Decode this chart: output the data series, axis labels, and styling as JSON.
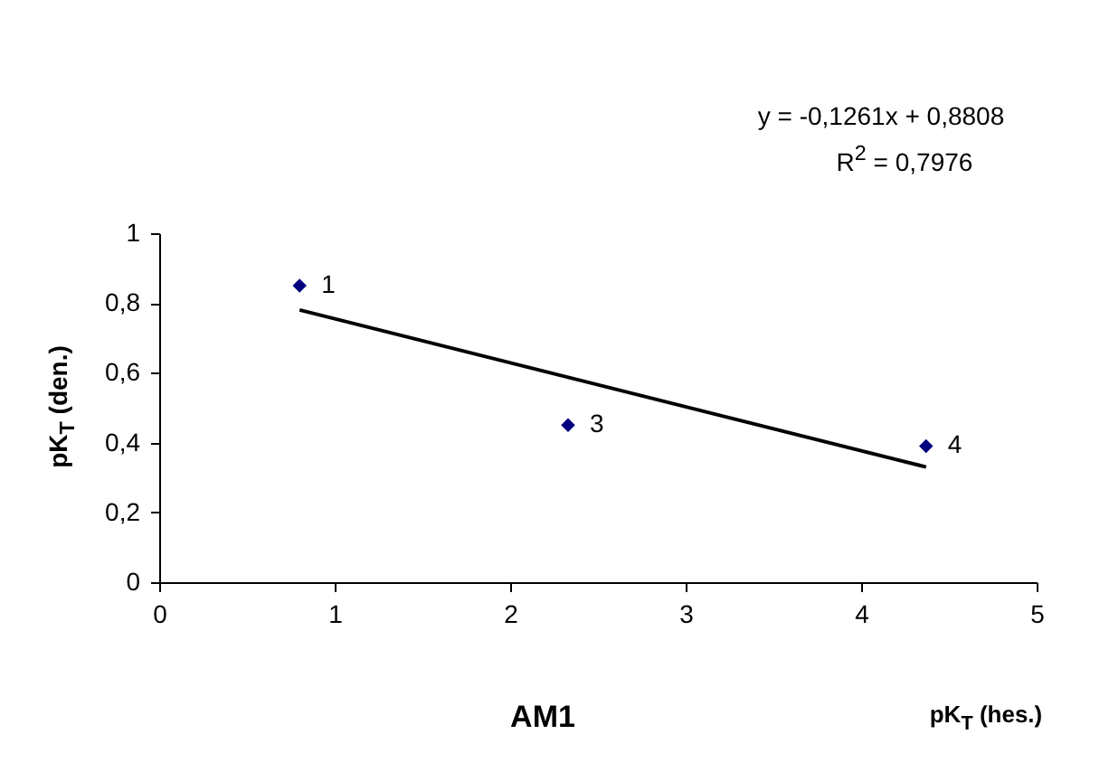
{
  "chart_data": {
    "type": "scatter",
    "xlabel": "pK$_{T}$ (hes.)",
    "ylabel": "pK$_{T}$ (den.)",
    "xlim": [
      0,
      5
    ],
    "xticks": [
      0,
      1,
      2,
      3,
      4,
      5
    ],
    "ylim": [
      0,
      1
    ],
    "yticks": [
      0,
      {
        "value": 0.2,
        "label": "0,2"
      },
      {
        "value": 0.4,
        "label": "0,4"
      },
      {
        "value": 0.6,
        "label": "0,6"
      },
      {
        "value": 0.8,
        "label": "0,8"
      },
      1
    ],
    "grid": false,
    "marker": "diamond",
    "series": [
      {
        "color": "#000080",
        "x": [
          0.8,
          2.33,
          4.37
        ],
        "values": [
          0.85,
          0.45,
          0.39
        ]
      },
      {
        "type": "line",
        "marker": "none",
        "color": "#000000",
        "x": [
          0.8,
          4.37
        ],
        "values": [
          0.78,
          0.33
        ]
      }
    ],
    "annotations": [
      {
        "text": "1",
        "x": 0.8,
        "y": 0.85
      },
      {
        "text": "3",
        "x": 2.33,
        "y": 0.45
      },
      {
        "text": "4",
        "x": 4.37,
        "y": 0.39
      },
      "y = -0,1261x + 0,8808",
      "R$^{2}$ = 0,7976",
      "AM1"
    ]
  }
}
